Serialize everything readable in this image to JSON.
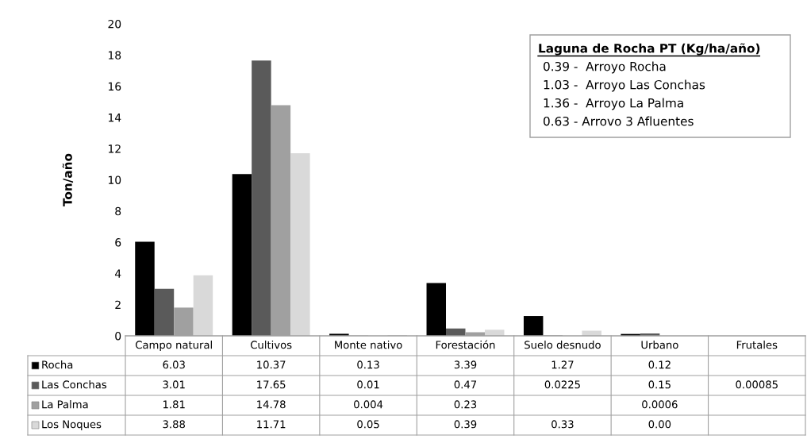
{
  "chart_data": {
    "type": "bar",
    "ylabel": "Ton/año",
    "categories": [
      "Campo natural",
      "Cultivos",
      "Monte nativo",
      "Forestación",
      "Suelo desnudo",
      "Urbano",
      "Frutales"
    ],
    "series": [
      {
        "name": "Rocha",
        "color": "#000000",
        "values": [
          6.03,
          10.37,
          0.13,
          3.39,
          1.27,
          0.12,
          null
        ],
        "value_labels": [
          "6.03",
          "10.37",
          "0.13",
          "3.39",
          "1.27",
          "0.12",
          null
        ]
      },
      {
        "name": "Las Conchas",
        "color": "#5a5a5a",
        "values": [
          3.01,
          17.65,
          0.01,
          0.47,
          0.0225,
          0.15,
          0.00085
        ],
        "value_labels": [
          "3.01",
          "17.65",
          "0.01",
          "0.47",
          "0.0225",
          "0.15",
          "0.00085"
        ]
      },
      {
        "name": "La Palma",
        "color": "#a0a0a0",
        "values": [
          1.81,
          14.78,
          0.004,
          0.23,
          null,
          0.0006,
          null
        ],
        "value_labels": [
          "1.81",
          "14.78",
          "0.004",
          "0.23",
          null,
          "0.0006",
          null
        ]
      },
      {
        "name": "Los Noques",
        "color": "#d9d9d9",
        "values": [
          3.88,
          11.71,
          0.05,
          0.39,
          0.33,
          0.0,
          null
        ],
        "value_labels": [
          "3.88",
          "11.71",
          "0.05",
          "0.39",
          "0.33",
          "0.00",
          null
        ]
      }
    ],
    "ylim": [
      0,
      20
    ],
    "yticks": [
      0,
      2,
      4,
      6,
      8,
      10,
      12,
      14,
      16,
      18,
      20
    ],
    "grid": false,
    "legend": "bottom",
    "annotations": [
      "Laguna de Rocha PT (Kg/ha/año)",
      "0.39 -  Arroyo Rocha",
      "1.03 -  Arroyo Las Conchas",
      "1.36 -  Arroyo La Palma",
      "0.63 - Arrovo 3 Afluentes"
    ]
  }
}
